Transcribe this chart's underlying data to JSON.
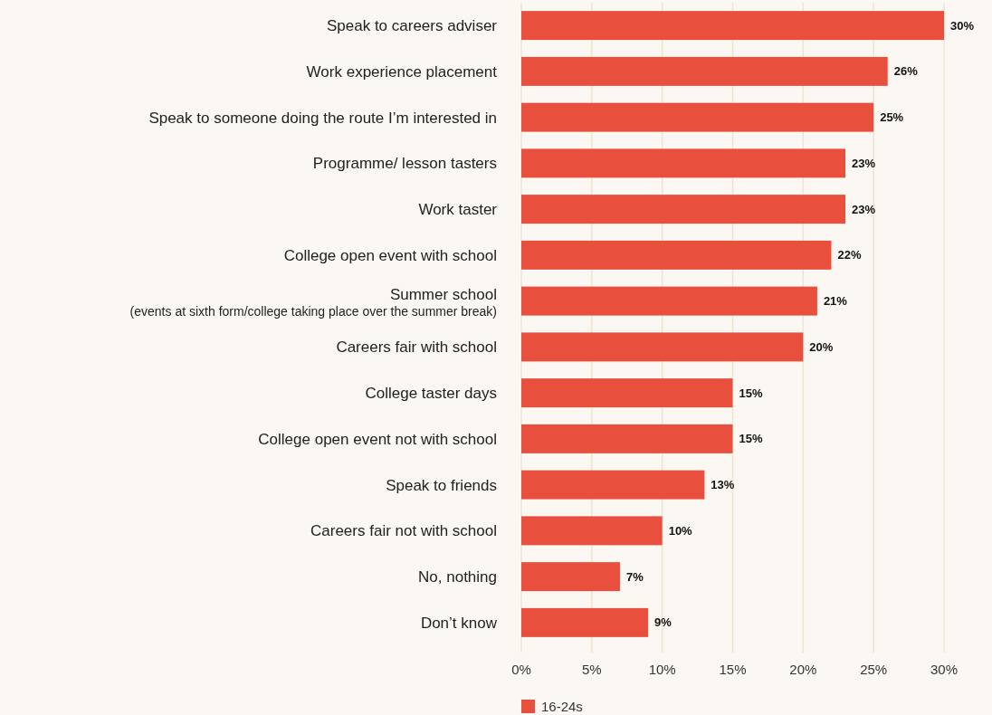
{
  "chart_data": {
    "type": "bar",
    "orientation": "horizontal",
    "categories": [
      "Speak to careers adviser",
      "Work experience placement",
      "Speak to someone doing the route I’m interested in",
      "Programme/ lesson tasters",
      "Work taster",
      "College open event with school",
      "Summer school\n(events at sixth form/college taking place over the summer break)",
      "Careers fair with school",
      "College taster days",
      "College open event not with school",
      "Speak to friends",
      "Careers fair not with school",
      "No, nothing",
      "Don’t know"
    ],
    "series": [
      {
        "name": "16-24s",
        "color": "#e84f3d",
        "values": [
          30,
          26,
          25,
          23,
          23,
          22,
          21,
          20,
          15,
          15,
          13,
          10,
          7,
          9
        ],
        "value_labels": [
          "30%",
          "26%",
          "25%",
          "23%",
          "23%",
          "22%",
          "21%",
          "20%",
          "15%",
          "15%",
          "13%",
          "10%",
          "7%",
          "9%"
        ]
      }
    ],
    "xlim": [
      0,
      30
    ],
    "xticks": [
      {
        "value": 0,
        "label": "0%"
      },
      {
        "value": 5,
        "label": "5%"
      },
      {
        "value": 10,
        "label": "10%"
      },
      {
        "value": 15,
        "label": "15%"
      },
      {
        "value": 20,
        "label": "20%"
      },
      {
        "value": 25,
        "label": "25%"
      },
      {
        "value": 30,
        "label": "30%"
      }
    ],
    "grid": "x",
    "legend": "bottom"
  }
}
